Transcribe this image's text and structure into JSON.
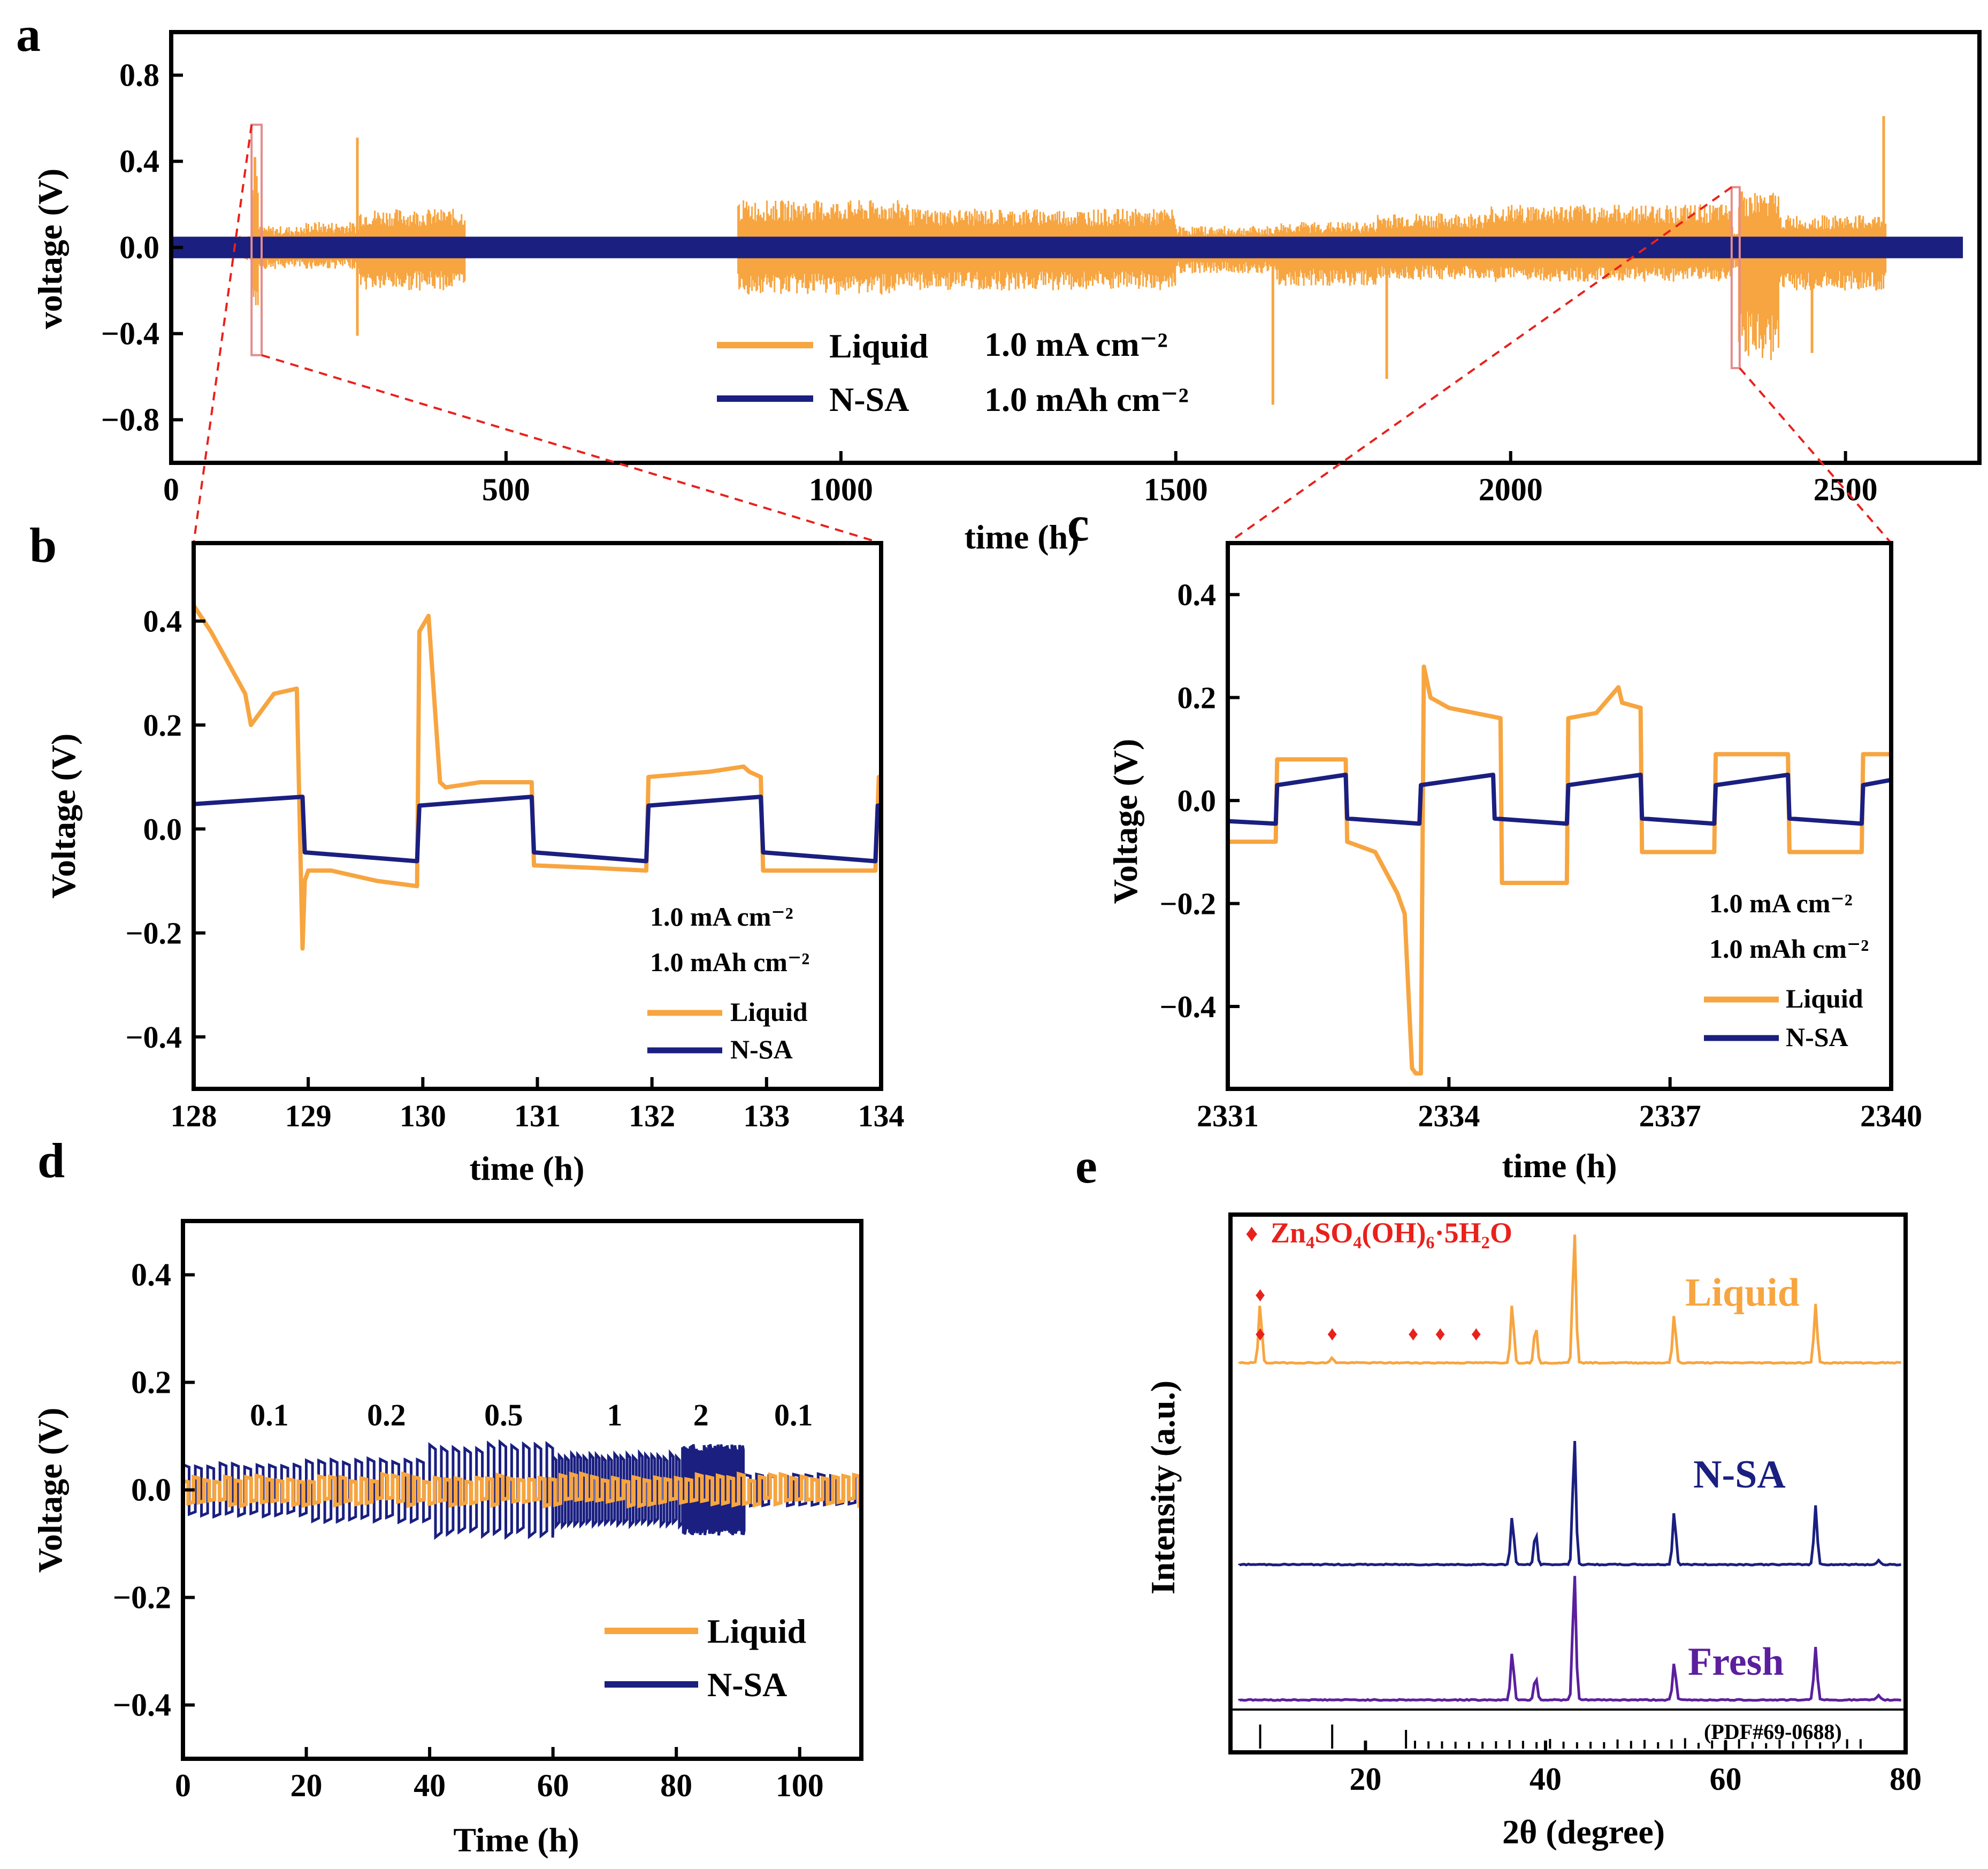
{
  "colors": {
    "liquid": "#F7A540",
    "nsa": "#1A1F80",
    "fresh": "#5B1F9E",
    "accent": "#E8211C",
    "axis": "#000000"
  },
  "chart_data": [
    {
      "panel": "a",
      "type": "line",
      "xlabel": "time (h)",
      "ylabel": "voltage (V)",
      "xlim": [
        0,
        2700
      ],
      "ylim": [
        -1.0,
        1.0
      ],
      "xticks": [
        0,
        500,
        1000,
        1500,
        2000,
        2500
      ],
      "yticks": [
        -0.8,
        -0.4,
        0.0,
        0.4,
        0.8
      ],
      "legend": [
        "Liquid",
        "N-SA"
      ],
      "conditions": [
        "1.0 mA cm⁻²",
        "1.0 mAh cm⁻²"
      ],
      "series": [
        {
          "name": "Liquid",
          "envelope": {
            "x": [
              0,
              100,
              120,
              130,
              200,
              280,
              440,
              845,
              1100,
              1500,
              1650,
              1800,
              1970,
              2330,
              2340,
              2400,
              2560
            ],
            "upper": [
              0.05,
              0.06,
              0.42,
              0.1,
              0.12,
              0.18,
              0.04,
              0.22,
              0.18,
              0.1,
              0.12,
              0.16,
              0.2,
              0.1,
              0.26,
              0.15,
              0.25
            ],
            "lower": [
              -0.05,
              -0.06,
              -0.28,
              -0.1,
              -0.1,
              -0.2,
              -0.04,
              -0.22,
              -0.2,
              -0.12,
              -0.18,
              -0.15,
              -0.16,
              -0.1,
              -0.53,
              -0.2,
              -0.26
            ]
          },
          "spikes": [
            {
              "x": 125,
              "v": 0.42
            },
            {
              "x": 278,
              "v": 0.51
            },
            {
              "x": 278,
              "v": -0.41
            },
            {
              "x": 1645,
              "v": -0.73
            },
            {
              "x": 1815,
              "v": -0.61
            },
            {
              "x": 2345,
              "v": 0.26
            },
            {
              "x": 2395,
              "v": -0.38
            },
            {
              "x": 2450,
              "v": -0.49
            },
            {
              "x": 2557,
              "v": 0.61
            }
          ]
        },
        {
          "name": "N-SA",
          "amplitude": 0.05,
          "xrange": [
            0,
            2675
          ]
        }
      ],
      "zoom_boxes": [
        {
          "x": [
            120,
            135
          ],
          "y": [
            -0.5,
            0.57
          ]
        },
        {
          "x": [
            2330,
            2342
          ],
          "y": [
            -0.56,
            0.28
          ]
        }
      ]
    },
    {
      "panel": "b",
      "type": "line",
      "xlabel": "time (h)",
      "ylabel": "Voltage (V)",
      "xlim": [
        128,
        134
      ],
      "ylim": [
        -0.5,
        0.55
      ],
      "xticks": [
        128,
        129,
        130,
        131,
        132,
        133,
        134
      ],
      "yticks": [
        -0.4,
        -0.2,
        0.0,
        0.2,
        0.4
      ],
      "legend": [
        "Liquid",
        "N-SA"
      ],
      "conditions": [
        "1.0 mA cm⁻²",
        "1.0 mAh cm⁻²"
      ],
      "series": [
        {
          "name": "Liquid",
          "x": [
            128.0,
            128.15,
            128.3,
            128.45,
            128.5,
            128.6,
            128.7,
            128.9,
            128.95,
            128.97,
            129.0,
            129.2,
            129.6,
            129.95,
            129.97,
            130.05,
            130.15,
            130.2,
            130.5,
            130.95,
            130.97,
            131.5,
            131.95,
            131.97,
            132.5,
            132.8,
            132.85,
            132.95,
            132.97,
            133.5,
            133.95,
            133.98,
            134.0
          ],
          "y": [
            0.43,
            0.38,
            0.32,
            0.26,
            0.2,
            0.23,
            0.26,
            0.27,
            -0.23,
            -0.1,
            -0.08,
            -0.08,
            -0.1,
            -0.11,
            0.38,
            0.41,
            0.09,
            0.08,
            0.09,
            0.09,
            -0.07,
            -0.075,
            -0.08,
            0.1,
            0.11,
            0.12,
            0.11,
            0.1,
            -0.08,
            -0.08,
            -0.08,
            0.1,
            0.1
          ]
        },
        {
          "name": "N-SA",
          "x": [
            128.0,
            128.95,
            128.97,
            129.95,
            129.97,
            130.95,
            130.97,
            131.95,
            131.97,
            132.95,
            132.97,
            133.95,
            133.97,
            134.0
          ],
          "y": [
            0.048,
            0.062,
            -0.045,
            -0.062,
            0.045,
            0.062,
            -0.045,
            -0.062,
            0.045,
            0.062,
            -0.045,
            -0.062,
            0.045,
            0.045
          ]
        }
      ]
    },
    {
      "panel": "c",
      "type": "line",
      "xlabel": "time (h)",
      "ylabel": "Voltage (V)",
      "xlim": [
        2331,
        2340
      ],
      "ylim": [
        -0.56,
        0.5
      ],
      "xticks": [
        2331,
        2334,
        2337,
        2340
      ],
      "yticks": [
        -0.4,
        -0.2,
        0.0,
        0.2,
        0.4
      ],
      "legend": [
        "Liquid",
        "N-SA"
      ],
      "conditions": [
        "1.0 mA cm⁻²",
        "1.0 mAh cm⁻²"
      ],
      "series": [
        {
          "name": "Liquid",
          "x": [
            2331.0,
            2331.65,
            2331.67,
            2332.6,
            2332.62,
            2333.0,
            2333.3,
            2333.4,
            2333.5,
            2333.55,
            2333.62,
            2333.66,
            2333.75,
            2334.0,
            2334.7,
            2334.72,
            2335.6,
            2335.62,
            2336.0,
            2336.3,
            2336.35,
            2336.6,
            2336.62,
            2337.6,
            2337.62,
            2338.6,
            2338.62,
            2339.6,
            2339.62,
            2340.0
          ],
          "y": [
            -0.08,
            -0.08,
            0.08,
            0.08,
            -0.08,
            -0.1,
            -0.18,
            -0.22,
            -0.52,
            -0.53,
            -0.53,
            0.26,
            0.2,
            0.18,
            0.16,
            -0.16,
            -0.16,
            0.16,
            0.17,
            0.22,
            0.19,
            0.18,
            -0.1,
            -0.1,
            0.09,
            0.09,
            -0.1,
            -0.1,
            0.09,
            0.09
          ]
        },
        {
          "name": "N-SA",
          "x": [
            2331.0,
            2331.65,
            2331.67,
            2332.6,
            2332.62,
            2333.6,
            2333.62,
            2334.6,
            2334.62,
            2335.6,
            2335.62,
            2336.6,
            2336.62,
            2337.6,
            2337.62,
            2338.6,
            2338.62,
            2339.6,
            2339.62,
            2340.0
          ],
          "y": [
            -0.04,
            -0.045,
            0.03,
            0.05,
            -0.035,
            -0.045,
            0.03,
            0.05,
            -0.035,
            -0.045,
            0.03,
            0.05,
            -0.035,
            -0.045,
            0.03,
            0.05,
            -0.035,
            -0.045,
            0.03,
            0.04
          ]
        }
      ]
    },
    {
      "panel": "d",
      "type": "line",
      "xlabel": "Time (h)",
      "ylabel": "Voltage (V)",
      "xlim": [
        0,
        110
      ],
      "ylim": [
        -0.5,
        0.5
      ],
      "xticks": [
        0,
        20,
        40,
        60,
        80,
        100
      ],
      "yticks": [
        -0.4,
        -0.2,
        0.0,
        0.2,
        0.4
      ],
      "legend": [
        "Liquid",
        "N-SA"
      ],
      "rate_labels": [
        {
          "text": "0.1",
          "x": 14
        },
        {
          "text": "0.2",
          "x": 33
        },
        {
          "text": "0.5",
          "x": 52
        },
        {
          "text": "1",
          "x": 70
        },
        {
          "text": "2",
          "x": 84
        },
        {
          "text": "0.1",
          "x": 99
        }
      ],
      "series": [
        {
          "name": "N-SA",
          "segments": [
            {
              "x": [
                0,
                20
              ],
              "amp": 0.05,
              "period": 2.0
            },
            {
              "x": [
                20,
                40
              ],
              "amp": 0.06,
              "period": 2.0
            },
            {
              "x": [
                40,
                60
              ],
              "amp": 0.09,
              "period": 1.9
            },
            {
              "x": [
                60,
                81
              ],
              "amp": 0.07,
              "period": 1.0
            },
            {
              "x": [
                81,
                91
              ],
              "amp": 0.085,
              "period": 0.25
            },
            {
              "x": [
                91,
                110
              ],
              "amp": 0.03,
              "period": 2.0
            }
          ]
        },
        {
          "name": "Liquid",
          "segments": [
            {
              "x": [
                0,
                110
              ],
              "amp": 0.03,
              "period": 1.7
            }
          ]
        }
      ]
    },
    {
      "panel": "e",
      "type": "line",
      "xlabel": "2θ (degree)",
      "ylabel": "Intensity (a.u.)",
      "xlim": [
        5,
        80
      ],
      "xticks": [
        20,
        40,
        60,
        80
      ],
      "legend_phase": "Zn₄SO₄(OH)₆·5H₂O",
      "reference": "(PDF#69-0688)",
      "series": [
        {
          "name": "Liquid",
          "peaks": [
            [
              8.3,
              0.55
            ],
            [
              16.3,
              0.05
            ],
            [
              36.3,
              0.55
            ],
            [
              38.9,
              0.35
            ],
            [
              43.2,
              1.25
            ],
            [
              54.3,
              0.45
            ],
            [
              70.0,
              0.55
            ]
          ]
        },
        {
          "name": "N-SA",
          "peaks": [
            [
              36.3,
              0.45
            ],
            [
              38.9,
              0.3
            ],
            [
              43.2,
              1.2
            ],
            [
              54.3,
              0.5
            ],
            [
              70.0,
              0.55
            ],
            [
              77.0,
              0.04
            ]
          ]
        },
        {
          "name": "Fresh",
          "peaks": [
            [
              36.3,
              0.45
            ],
            [
              38.9,
              0.22
            ],
            [
              43.2,
              1.2
            ],
            [
              54.3,
              0.35
            ],
            [
              70.0,
              0.5
            ],
            [
              77.0,
              0.04
            ]
          ]
        }
      ],
      "phase_markers_x": [
        8.3,
        8.3,
        16.3,
        25.3,
        28.3,
        32.3
      ],
      "reference_lines_x": [
        8.3,
        16.3,
        24.5,
        25.5,
        27.0,
        28.5,
        30.0,
        31.5,
        33.0,
        34.5,
        36.0,
        37.5,
        39.0,
        40.5,
        42.0,
        43.5,
        45.0,
        46.5,
        48.0,
        49.5,
        51.0,
        52.5,
        54.0,
        55.5,
        57.0,
        58.5,
        60.0,
        61.5,
        63.0,
        64.5,
        66.0,
        67.5,
        69.0,
        70.5,
        72.0,
        73.5,
        75.0
      ]
    }
  ]
}
